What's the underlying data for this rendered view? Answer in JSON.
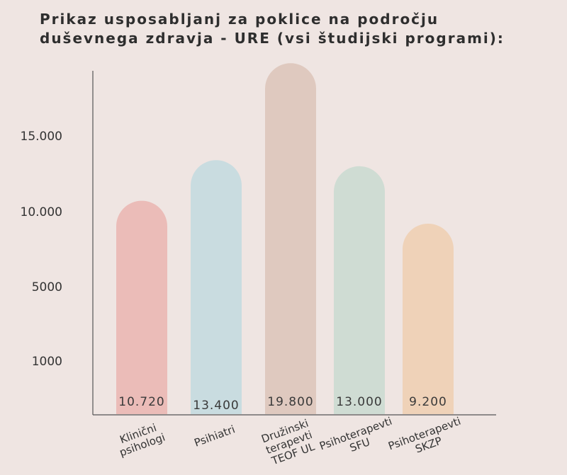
{
  "chart_data": {
    "type": "bar",
    "title": "Prikaz usposabljanj za poklice na področju duševnega zdravja - URE (vsi študijski programi):",
    "categories": [
      "Klinični\npsihologi",
      "Psihiatri",
      "Družinski\nterapevti\nTEOF UL",
      "Psihoterapevti\nSFU",
      "Psihoterapevti\nSKZP"
    ],
    "values": [
      10720,
      13400,
      19800,
      13000,
      9200
    ],
    "data_labels": [
      "10.720",
      "13.400",
      "19.800",
      "13.000",
      "9.200"
    ],
    "colors": [
      "#ebbcb8",
      "#c9dce0",
      "#dfc9bf",
      "#cfdcd3",
      "#efd2b8"
    ],
    "yticks": [
      1000,
      5000,
      10000,
      15000
    ],
    "ytick_labels": [
      "1000",
      "5000",
      "10.000",
      "15.000"
    ],
    "xlabel": "",
    "ylabel": "",
    "grid": false,
    "legend": "none",
    "bar_shape": "rounded-top"
  }
}
